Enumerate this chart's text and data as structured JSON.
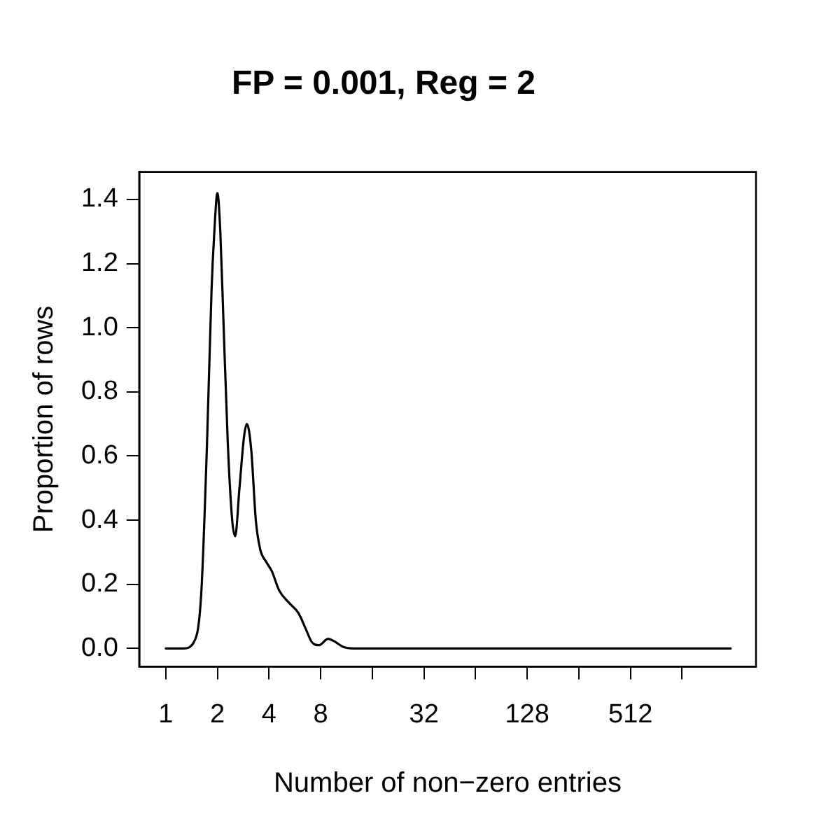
{
  "chart_data": {
    "type": "line",
    "title": "FP = 0.001, Reg = 2",
    "xlabel": "Number of non−zero entries",
    "ylabel": "Proportion of rows",
    "log": "x",
    "grid": false,
    "legend": false,
    "marker": "none",
    "line_style": "solid",
    "xlim": [
      0.71,
      2760
    ],
    "ylim": [
      -0.057,
      1.486
    ],
    "xticks": [
      1,
      2,
      4,
      8,
      {
        "value": 16,
        "label": null
      },
      32,
      {
        "value": 64,
        "label": null
      },
      128,
      {
        "value": 256,
        "label": null
      },
      512,
      {
        "value": 1024,
        "label": null
      }
    ],
    "yticks": [
      {
        "value": 0,
        "label": "0.0"
      },
      0.2,
      0.4,
      0.6,
      0.8,
      {
        "value": 1,
        "label": "1.0"
      },
      1.2,
      1.4
    ],
    "series": [
      {
        "color": "#000000",
        "x": [
          1,
          1.27,
          1.46,
          1.61,
          1.74,
          1.85,
          1.92,
          2,
          2.08,
          2.17,
          2.3,
          2.44,
          2.54,
          2.69,
          2.86,
          2.97,
          3.15,
          3.35,
          3.55,
          3.85,
          4.16,
          4.59,
          5.28,
          5.94,
          6.56,
          7.1,
          7.84,
          8.83,
          9.75,
          10.8,
          12.4,
          1966
        ],
        "values": [
          0,
          0,
          0.02,
          0.17,
          0.64,
          1.12,
          1.3,
          1.42,
          1.3,
          1.02,
          0.64,
          0.4,
          0.35,
          0.5,
          0.66,
          0.7,
          0.62,
          0.4,
          0.31,
          0.27,
          0.24,
          0.18,
          0.14,
          0.11,
          0.06,
          0.02,
          0.01,
          0.03,
          0.02,
          0.005,
          0,
          0
        ]
      }
    ]
  }
}
